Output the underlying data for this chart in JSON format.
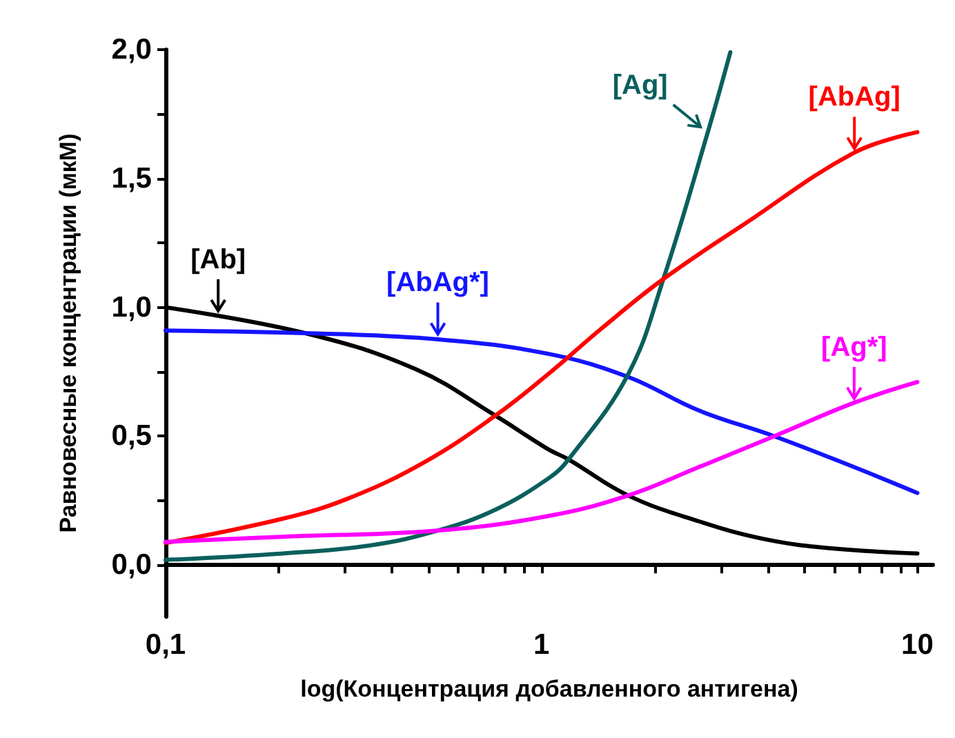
{
  "chart_data": {
    "type": "line",
    "xlabel": "log(Концентрация добавленного антигена)",
    "ylabel": "Равновесные концентрации (мкМ)",
    "log": "x",
    "xlim": [
      0.1,
      11
    ],
    "ylim": [
      -0.2,
      2.0
    ],
    "xticks": [
      {
        "value": 0.1,
        "label": "0,1"
      },
      {
        "value": 0.2,
        "label": null
      },
      {
        "value": 0.3,
        "label": null
      },
      {
        "value": 0.4,
        "label": null
      },
      {
        "value": 0.5,
        "label": null
      },
      {
        "value": 0.6,
        "label": null
      },
      {
        "value": 0.7,
        "label": null
      },
      {
        "value": 0.8,
        "label": null
      },
      {
        "value": 0.9,
        "label": null
      },
      1,
      {
        "value": 2,
        "label": null
      },
      {
        "value": 3,
        "label": null
      },
      {
        "value": 4,
        "label": null
      },
      {
        "value": 5,
        "label": null
      },
      {
        "value": 6,
        "label": null
      },
      {
        "value": 7,
        "label": null
      },
      {
        "value": 8,
        "label": null
      },
      {
        "value": 9,
        "label": null
      },
      10
    ],
    "yticks": [
      {
        "value": 0,
        "label": "0,0"
      },
      {
        "value": 0.25,
        "label": null
      },
      {
        "value": 0.5,
        "label": "0,5"
      },
      {
        "value": 0.75,
        "label": null
      },
      {
        "value": 1,
        "label": "1,0"
      },
      {
        "value": 1.25,
        "label": null
      },
      {
        "value": 1.5,
        "label": "1,5"
      },
      {
        "value": 1.75,
        "label": null
      },
      {
        "value": 2,
        "label": "2,0"
      }
    ],
    "grid": false,
    "series": [
      {
        "color": "#000000",
        "x": [
          0.1,
          0.235,
          0.463,
          0.754,
          1.04,
          1.18,
          1.7,
          2.62,
          3.94,
          5.9,
          10
        ],
        "values": [
          1.0,
          0.9,
          0.76,
          0.58,
          0.45,
          0.41,
          0.27,
          0.17,
          0.1,
          0.065,
          0.045
        ]
      },
      {
        "color": "#1414ff",
        "x": [
          0.1,
          0.235,
          0.53,
          1.04,
          1.7,
          2.62,
          4.16,
          6.79,
          10
        ],
        "values": [
          0.91,
          0.9,
          0.876,
          0.82,
          0.73,
          0.6,
          0.5,
          0.38,
          0.28
        ]
      },
      {
        "color": "#0a5f5c",
        "x": [
          0.1,
          0.205,
          0.353,
          0.53,
          0.754,
          1.04,
          1.18,
          1.7,
          2.11,
          2.77,
          3.18
        ],
        "values": [
          0.02,
          0.045,
          0.077,
          0.134,
          0.215,
          0.335,
          0.41,
          0.74,
          1.11,
          1.68,
          1.99
        ]
      },
      {
        "color": "#ff0000",
        "x": [
          0.1,
          0.205,
          0.308,
          0.489,
          0.754,
          1.04,
          1.45,
          2.11,
          3.44,
          6.79,
          10
        ],
        "values": [
          0.086,
          0.18,
          0.26,
          0.4,
          0.58,
          0.74,
          0.92,
          1.11,
          1.32,
          1.6,
          1.68
        ]
      },
      {
        "color": "#ff00ff",
        "x": [
          0.1,
          0.205,
          0.53,
          1.04,
          1.7,
          2.62,
          4.16,
          6.79,
          10
        ],
        "values": [
          0.09,
          0.11,
          0.134,
          0.19,
          0.27,
          0.38,
          0.5,
          0.63,
          0.71
        ]
      }
    ],
    "annotations": [
      {
        "text": "[Ab]",
        "x": 0.138,
        "y": 0.97
      },
      {
        "text": "[AbAg*]",
        "x": 0.53,
        "y": 0.88
      },
      {
        "text": "[Ag]",
        "x": 2.7,
        "y": 1.69
      },
      {
        "text": "[AbAg]",
        "x": 6.8,
        "y": 1.6
      },
      {
        "text": "[Ag*]",
        "x": 6.79,
        "y": 0.63
      }
    ]
  }
}
